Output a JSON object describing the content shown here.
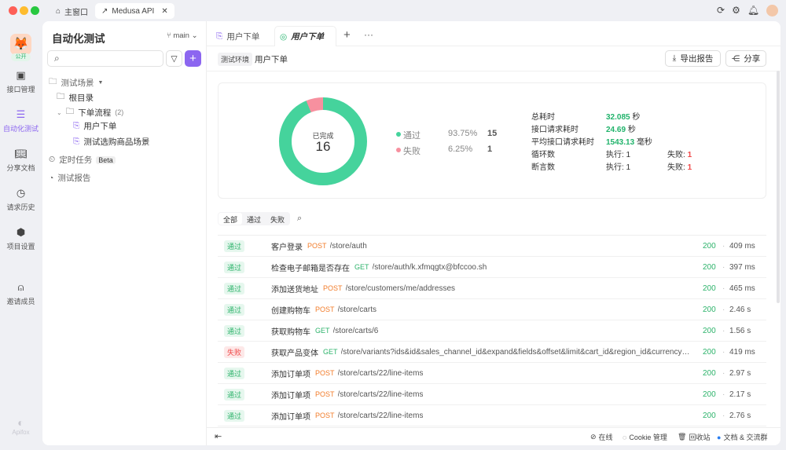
{
  "window": {
    "tabs": [
      {
        "label": "主窗口",
        "icon": "home-icon"
      },
      {
        "label": "Medusa API",
        "icon": "project-icon"
      }
    ]
  },
  "rail": {
    "badge": "公开",
    "items": [
      {
        "label": "接口管理",
        "icon": "api-icon"
      },
      {
        "label": "自动化测试",
        "icon": "automation-icon",
        "active": true
      },
      {
        "label": "分享文档",
        "icon": "book-icon"
      },
      {
        "label": "请求历史",
        "icon": "clock-icon"
      },
      {
        "label": "项目设置",
        "icon": "settings-icon"
      },
      {
        "label": "邀请成员",
        "icon": "add-user-icon"
      }
    ],
    "logo": "Apifox"
  },
  "sidebar": {
    "title": "自动化测试",
    "branch": "main",
    "search_placeholder": "",
    "tree": {
      "scenes": "测试场景",
      "root": "根目录",
      "folder": "下单流程",
      "folder_count": "(2)",
      "items": [
        "用户下单",
        "测试选购商品场景"
      ],
      "scheduled": "定时任务",
      "beta": "Beta",
      "reports": "测试报告"
    }
  },
  "main": {
    "tabs": [
      "用户下单",
      "用户下单"
    ],
    "env": "测试环境",
    "title": "用户下单",
    "export": "导出报告",
    "share": "分享",
    "summary": {
      "center_label": "已完成",
      "center_value": "16",
      "pass_label": "通过",
      "pass_pct": "93.75%",
      "pass_count": "15",
      "fail_label": "失败",
      "fail_pct": "6.25%",
      "fail_count": "1",
      "pass_color": "#45d39c",
      "fail_color": "#f7909f",
      "stats": {
        "total_label": "总耗时",
        "total": "32.085",
        "total_unit": "秒",
        "req_label": "接口请求耗时",
        "req": "24.69",
        "req_unit": "秒",
        "avg_label": "平均接口请求耗时",
        "avg": "1543.13",
        "avg_unit": "毫秒",
        "loop_label": "循环数",
        "loop_exec": "执行: 1",
        "loop_fail_label": "失败:",
        "loop_fail": "1",
        "assert_label": "断言数",
        "assert_exec": "执行: 1",
        "assert_fail_label": "失败:",
        "assert_fail": "1"
      }
    },
    "filters": [
      "全部",
      "通过",
      "失败"
    ],
    "rows": [
      {
        "status": "通过",
        "name": "客户登录",
        "method": "POST",
        "path": "/store/auth",
        "code": "200",
        "time": "409 ms"
      },
      {
        "status": "通过",
        "name": "检查电子邮箱是否存在",
        "method": "GET",
        "path": "/store/auth/k.xfmqgtx@bfccoo.sh",
        "code": "200",
        "time": "397 ms"
      },
      {
        "status": "通过",
        "name": "添加送货地址",
        "method": "POST",
        "path": "/store/customers/me/addresses",
        "code": "200",
        "time": "465 ms"
      },
      {
        "status": "通过",
        "name": "创建购物车",
        "method": "POST",
        "path": "/store/carts",
        "code": "200",
        "time": "2.46 s"
      },
      {
        "status": "通过",
        "name": "获取购物车",
        "method": "GET",
        "path": "/store/carts/6",
        "code": "200",
        "time": "1.56 s"
      },
      {
        "status": "失败",
        "name": "获取产品变体",
        "method": "GET",
        "path": "/store/variants?ids&id&sales_channel_id&expand&fields&offset&limit&cart_id&region_id&currency_code&ti...",
        "code": "200",
        "time": "419 ms"
      },
      {
        "status": "通过",
        "name": "添加订单项",
        "method": "POST",
        "path": "/store/carts/22/line-items",
        "code": "200",
        "time": "2.97 s"
      },
      {
        "status": "通过",
        "name": "添加订单项",
        "method": "POST",
        "path": "/store/carts/22/line-items",
        "code": "200",
        "time": "2.17 s"
      },
      {
        "status": "通过",
        "name": "添加订单项",
        "method": "POST",
        "path": "/store/carts/22/line-items",
        "code": "200",
        "time": "2.76 s"
      }
    ]
  },
  "footer": {
    "online": "在线",
    "cookie": "Cookie 管理",
    "trash": "回收站",
    "docs": "文档 & 交流群"
  }
}
